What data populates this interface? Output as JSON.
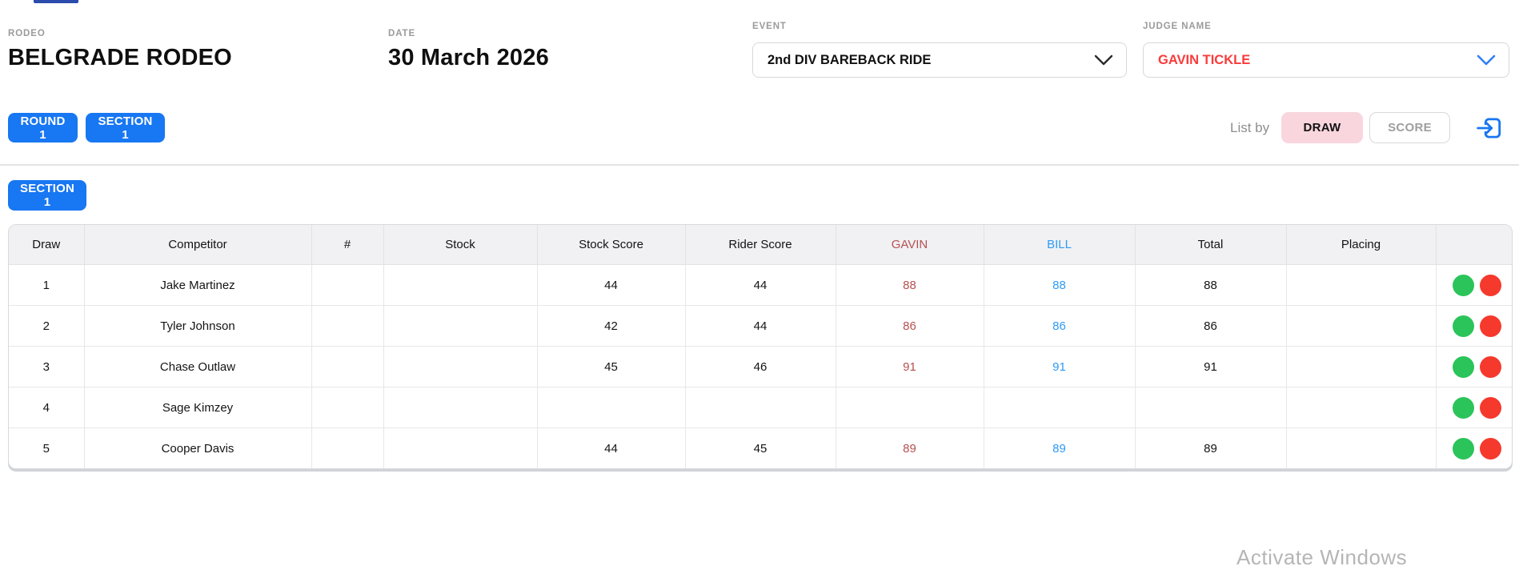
{
  "header": {
    "rodeo_label": "RODEO",
    "rodeo_name": "BELGRADE RODEO",
    "date_label": "DATE",
    "date_value": "30 March 2026",
    "event_label": "EVENT",
    "event_value": "2nd DIV BAREBACK RIDE",
    "judge_label": "JUDGE NAME",
    "judge_value": "GAVIN TICKLE"
  },
  "toolbar": {
    "round_button": "ROUND 1",
    "section_button": "SECTION 1",
    "list_by_label": "List by",
    "draw_button": "DRAW",
    "score_button": "SCORE"
  },
  "section_bar": {
    "section_button": "SECTION 1"
  },
  "table": {
    "columns": [
      {
        "key": "draw",
        "label": "Draw"
      },
      {
        "key": "competitor",
        "label": "Competitor"
      },
      {
        "key": "num",
        "label": "#"
      },
      {
        "key": "stock",
        "label": "Stock"
      },
      {
        "key": "stock_score",
        "label": "Stock Score"
      },
      {
        "key": "rider_score",
        "label": "Rider Score"
      },
      {
        "key": "gavin",
        "label": "GAVIN"
      },
      {
        "key": "bill",
        "label": "BILL"
      },
      {
        "key": "total",
        "label": "Total"
      },
      {
        "key": "placing",
        "label": "Placing"
      },
      {
        "key": "actions",
        "label": ""
      }
    ],
    "rows": [
      {
        "draw": "1",
        "competitor": "Jake Martinez",
        "num": "",
        "stock": "",
        "stock_score": "44",
        "rider_score": "44",
        "gavin": "88",
        "bill": "88",
        "total": "88",
        "placing": ""
      },
      {
        "draw": "2",
        "competitor": "Tyler Johnson",
        "num": "",
        "stock": "",
        "stock_score": "42",
        "rider_score": "44",
        "gavin": "86",
        "bill": "86",
        "total": "86",
        "placing": ""
      },
      {
        "draw": "3",
        "competitor": "Chase Outlaw",
        "num": "",
        "stock": "",
        "stock_score": "45",
        "rider_score": "46",
        "gavin": "91",
        "bill": "91",
        "total": "91",
        "placing": ""
      },
      {
        "draw": "4",
        "competitor": "Sage Kimzey",
        "num": "",
        "stock": "",
        "stock_score": "",
        "rider_score": "",
        "gavin": "",
        "bill": "",
        "total": "",
        "placing": ""
      },
      {
        "draw": "5",
        "competitor": "Cooper Davis",
        "num": "",
        "stock": "",
        "stock_score": "44",
        "rider_score": "45",
        "gavin": "89",
        "bill": "89",
        "total": "89",
        "placing": ""
      }
    ]
  },
  "icons": {
    "event_chevron": "chevron-down",
    "judge_chevron": "chevron-down",
    "exit": "exit-arrow-into-box"
  },
  "watermark": {
    "text": "Activate Windows"
  },
  "colors": {
    "primary_blue": "#1877F2",
    "judge_red": "#fa3b3b",
    "gavin_column_red": "#b55150",
    "bill_column_blue": "#2e9bf6",
    "draw_pill_pink": "#f9d6de",
    "green_circle": "#2bc45a",
    "red_circle": "#f6392d",
    "top_sliver_blue": "#2b4bad"
  }
}
